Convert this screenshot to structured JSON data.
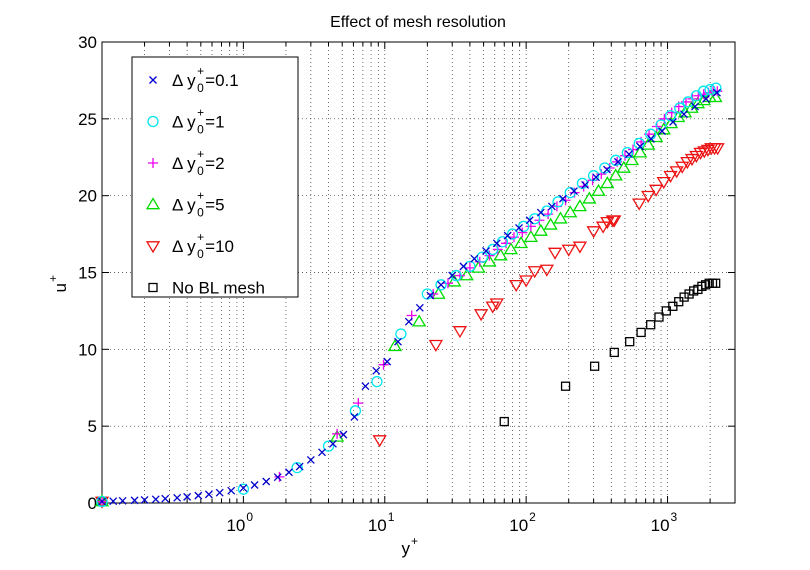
{
  "chart_data": {
    "type": "scatter",
    "title": "Effect of mesh resolution",
    "xlabel": {
      "base": "y",
      "sup": "+"
    },
    "ylabel": {
      "base": "u",
      "sup": "+"
    },
    "xscale": "log",
    "xlim": [
      0.1,
      3000
    ],
    "ylim": [
      0,
      30
    ],
    "grid": true,
    "legend_position": "top-left",
    "yticks": [
      0,
      5,
      10,
      15,
      20,
      25,
      30
    ],
    "xticks": [
      {
        "base": "10",
        "exp": "0"
      },
      {
        "base": "10",
        "exp": "1"
      },
      {
        "base": "10",
        "exp": "2"
      },
      {
        "base": "10",
        "exp": "3"
      }
    ],
    "series": [
      {
        "name": "Δ y0+=0.1",
        "legend": {
          "prefix": "Δ y",
          "sup": "+",
          "sub": "0",
          "suffix": "=0.1"
        },
        "marker": "x",
        "color": "#0000cc",
        "x": [
          0.1,
          0.12,
          0.14,
          0.17,
          0.2,
          0.24,
          0.28,
          0.34,
          0.4,
          0.48,
          0.57,
          0.68,
          0.82,
          1.0,
          1.2,
          1.45,
          1.75,
          2.1,
          2.5,
          3.0,
          3.6,
          4.3,
          5.1,
          6.1,
          7.3,
          8.7,
          10.4,
          12.4,
          14.8,
          17.7,
          21,
          25,
          30,
          36,
          43,
          52,
          62,
          74,
          89,
          106,
          127,
          152,
          182,
          218,
          261,
          312,
          373,
          446,
          534,
          639,
          764,
          914,
          1093,
          1307,
          1564,
          1870,
          2236
        ],
        "y": [
          0.1,
          0.12,
          0.14,
          0.17,
          0.2,
          0.24,
          0.28,
          0.34,
          0.4,
          0.48,
          0.56,
          0.67,
          0.8,
          0.97,
          1.17,
          1.4,
          1.68,
          2.0,
          2.37,
          2.8,
          3.3,
          3.85,
          4.45,
          5.6,
          7.6,
          8.6,
          9.2,
          10.5,
          11.8,
          12.7,
          13.5,
          14.2,
          14.8,
          15.4,
          15.9,
          16.4,
          16.9,
          17.4,
          17.9,
          18.4,
          18.9,
          19.3,
          19.8,
          20.3,
          20.7,
          21.2,
          21.7,
          22.2,
          22.7,
          23.2,
          23.7,
          24.2,
          24.8,
          25.3,
          25.8,
          26.3,
          26.7
        ]
      },
      {
        "name": "Δ y0+=1",
        "legend": {
          "prefix": "Δ y",
          "sup": "+",
          "sub": "0",
          "suffix": "=1"
        },
        "marker": "o",
        "color": "#00e5ee",
        "x": [
          0.1,
          1.0,
          2.4,
          4.0,
          6.2,
          8.8,
          13.0,
          20,
          25,
          32,
          40,
          49,
          58,
          68,
          80,
          96,
          115,
          140,
          168,
          205,
          250,
          300,
          360,
          430,
          520,
          630,
          760,
          900,
          1050,
          1220,
          1400,
          1600,
          1800,
          2000,
          2200
        ],
        "y": [
          0.1,
          0.9,
          2.3,
          3.7,
          6.0,
          7.9,
          11.0,
          13.6,
          14.2,
          14.8,
          15.4,
          16.0,
          16.5,
          17.0,
          17.5,
          18.0,
          18.5,
          19.0,
          19.6,
          20.2,
          20.8,
          21.3,
          21.8,
          22.3,
          22.8,
          23.4,
          24.0,
          24.6,
          25.2,
          25.7,
          26.1,
          26.5,
          26.8,
          26.9,
          27.0
        ]
      },
      {
        "name": "Δ y0+=2",
        "legend": {
          "prefix": "Δ y",
          "sup": "+",
          "sub": "0",
          "suffix": "=2"
        },
        "marker": "+",
        "color": "#ee00ee",
        "x": [
          0.1,
          1.8,
          4.6,
          6.5,
          9.8,
          15.5,
          22,
          28,
          34,
          40,
          47,
          55,
          63,
          72,
          82,
          94,
          108,
          124,
          143,
          165,
          190,
          220,
          255,
          295,
          340,
          390,
          440,
          500,
          570,
          650,
          740,
          840,
          950,
          1070,
          1200,
          1350,
          1500,
          1650,
          1800,
          1950,
          2100,
          2250
        ],
        "y": [
          0.1,
          1.7,
          4.5,
          6.5,
          9.0,
          12.2,
          13.6,
          14.3,
          14.8,
          15.3,
          15.7,
          16.1,
          16.5,
          16.9,
          17.3,
          17.6,
          18.0,
          18.4,
          18.8,
          19.3,
          19.7,
          20.2,
          20.6,
          21.0,
          21.4,
          21.8,
          22.2,
          22.6,
          23.0,
          23.5,
          24.0,
          24.5,
          25.0,
          25.4,
          25.8,
          26.1,
          26.3,
          26.5,
          26.6,
          26.7,
          26.8,
          26.8
        ]
      },
      {
        "name": "Δ y0+=5",
        "legend": {
          "prefix": "Δ y",
          "sup": "+",
          "sub": "0",
          "suffix": "=5"
        },
        "marker": "triangle-up",
        "color": "#00dd00",
        "x": [
          0.1,
          4.6,
          11.8,
          17.5,
          24,
          31,
          38,
          46,
          55,
          66,
          78,
          92,
          108,
          127,
          149,
          175,
          205,
          240,
          280,
          325,
          375,
          430,
          490,
          560,
          640,
          730,
          830,
          940,
          1060,
          1190,
          1330,
          1480,
          1640,
          1810,
          1990,
          2180
        ],
        "y": [
          0.1,
          4.3,
          10.2,
          11.8,
          13.6,
          14.4,
          14.8,
          15.3,
          15.7,
          16.1,
          16.5,
          16.9,
          17.3,
          17.7,
          18.1,
          18.5,
          18.9,
          19.3,
          19.8,
          20.3,
          20.8,
          21.3,
          21.8,
          22.3,
          22.8,
          23.3,
          23.8,
          24.3,
          24.7,
          25.1,
          25.4,
          25.7,
          26.0,
          26.2,
          26.4,
          26.4
        ]
      },
      {
        "name": "Δ y0+=10",
        "legend": {
          "prefix": "Δ y",
          "sup": "+",
          "sub": "0",
          "suffix": "=10"
        },
        "marker": "triangle-down",
        "color": "#ee1111",
        "x": [
          0.1,
          9.2,
          23,
          34,
          48,
          58,
          62,
          85,
          100,
          115,
          140,
          160,
          200,
          240,
          300,
          350,
          375,
          410,
          420,
          630,
          730,
          830,
          940,
          1050,
          1160,
          1270,
          1380,
          1490,
          1600,
          1710,
          1820,
          1930,
          2040,
          2150,
          2260
        ],
        "y": [
          0.1,
          4.1,
          10.3,
          11.2,
          12.3,
          12.8,
          13.0,
          14.2,
          14.5,
          15.1,
          15.2,
          16.3,
          16.5,
          16.7,
          17.7,
          18.0,
          18.3,
          18.4,
          18.4,
          19.5,
          20.0,
          20.4,
          20.9,
          21.3,
          21.6,
          21.9,
          22.2,
          22.4,
          22.6,
          22.8,
          22.9,
          23.0,
          23.1,
          23.1,
          23.1
        ]
      },
      {
        "name": "No BL mesh",
        "legend": {
          "prefix": "No BL mesh",
          "sup": "",
          "sub": "",
          "suffix": ""
        },
        "marker": "square",
        "color": "#000000",
        "x": [
          0.1,
          70,
          190,
          305,
          420,
          540,
          650,
          760,
          870,
          980,
          1090,
          1200,
          1310,
          1420,
          1530,
          1640,
          1750,
          1860,
          1970,
          2080,
          2190
        ],
        "y": [
          0.1,
          5.3,
          7.6,
          8.9,
          9.8,
          10.5,
          11.1,
          11.6,
          12.1,
          12.5,
          12.8,
          13.1,
          13.4,
          13.6,
          13.8,
          13.9,
          14.1,
          14.2,
          14.3,
          14.3,
          14.3
        ]
      }
    ]
  }
}
